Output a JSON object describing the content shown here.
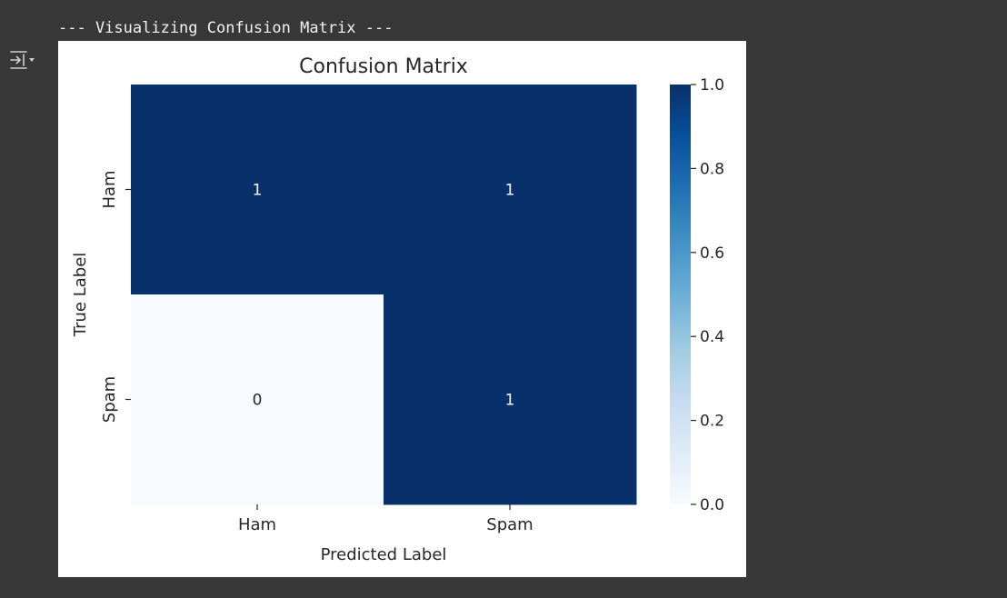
{
  "cell_output": {
    "stdout_text": "--- Visualizing Confusion Matrix ---",
    "output_icon": "output-toggle-icon"
  },
  "colors": {
    "page_background": "#383838",
    "figure_background": "#ffffff",
    "cmap_low": "#f7fbff",
    "cmap_high": "#08306b",
    "annotation_on_dark": "#ffffff",
    "annotation_on_light": "#262626"
  },
  "chart_data": {
    "type": "heatmap",
    "title": "Confusion Matrix",
    "xlabel": "Predicted Label",
    "ylabel": "True Label",
    "x_categories": [
      "Ham",
      "Spam"
    ],
    "y_categories": [
      "Ham",
      "Spam"
    ],
    "values": [
      [
        1,
        1
      ],
      [
        0,
        1
      ]
    ],
    "annotations": [
      [
        "1",
        "1"
      ],
      [
        "0",
        "1"
      ]
    ],
    "colormap": "Blues",
    "colorbar": {
      "range": [
        0.0,
        1.0
      ],
      "ticks": [
        "0.0",
        "0.2",
        "0.4",
        "0.6",
        "0.8",
        "1.0"
      ]
    }
  }
}
